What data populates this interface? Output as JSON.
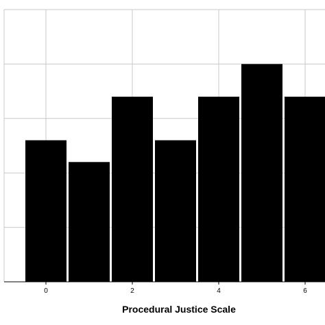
{
  "chart_data": {
    "type": "bar",
    "categories": [
      "0",
      "1",
      "2",
      "3",
      "4",
      "5",
      "6"
    ],
    "values": [
      2.6,
      2.2,
      3.4,
      2.6,
      3.4,
      4.0,
      3.4
    ],
    "xlabel": "Procedural Justice Scale",
    "ylabel": "",
    "x_tick_labels": [
      "0",
      "2",
      "4",
      "6"
    ],
    "ylim": [
      0,
      5
    ],
    "grid": true,
    "bar_color": "#000000",
    "grid_color": "#c8c8c8"
  }
}
